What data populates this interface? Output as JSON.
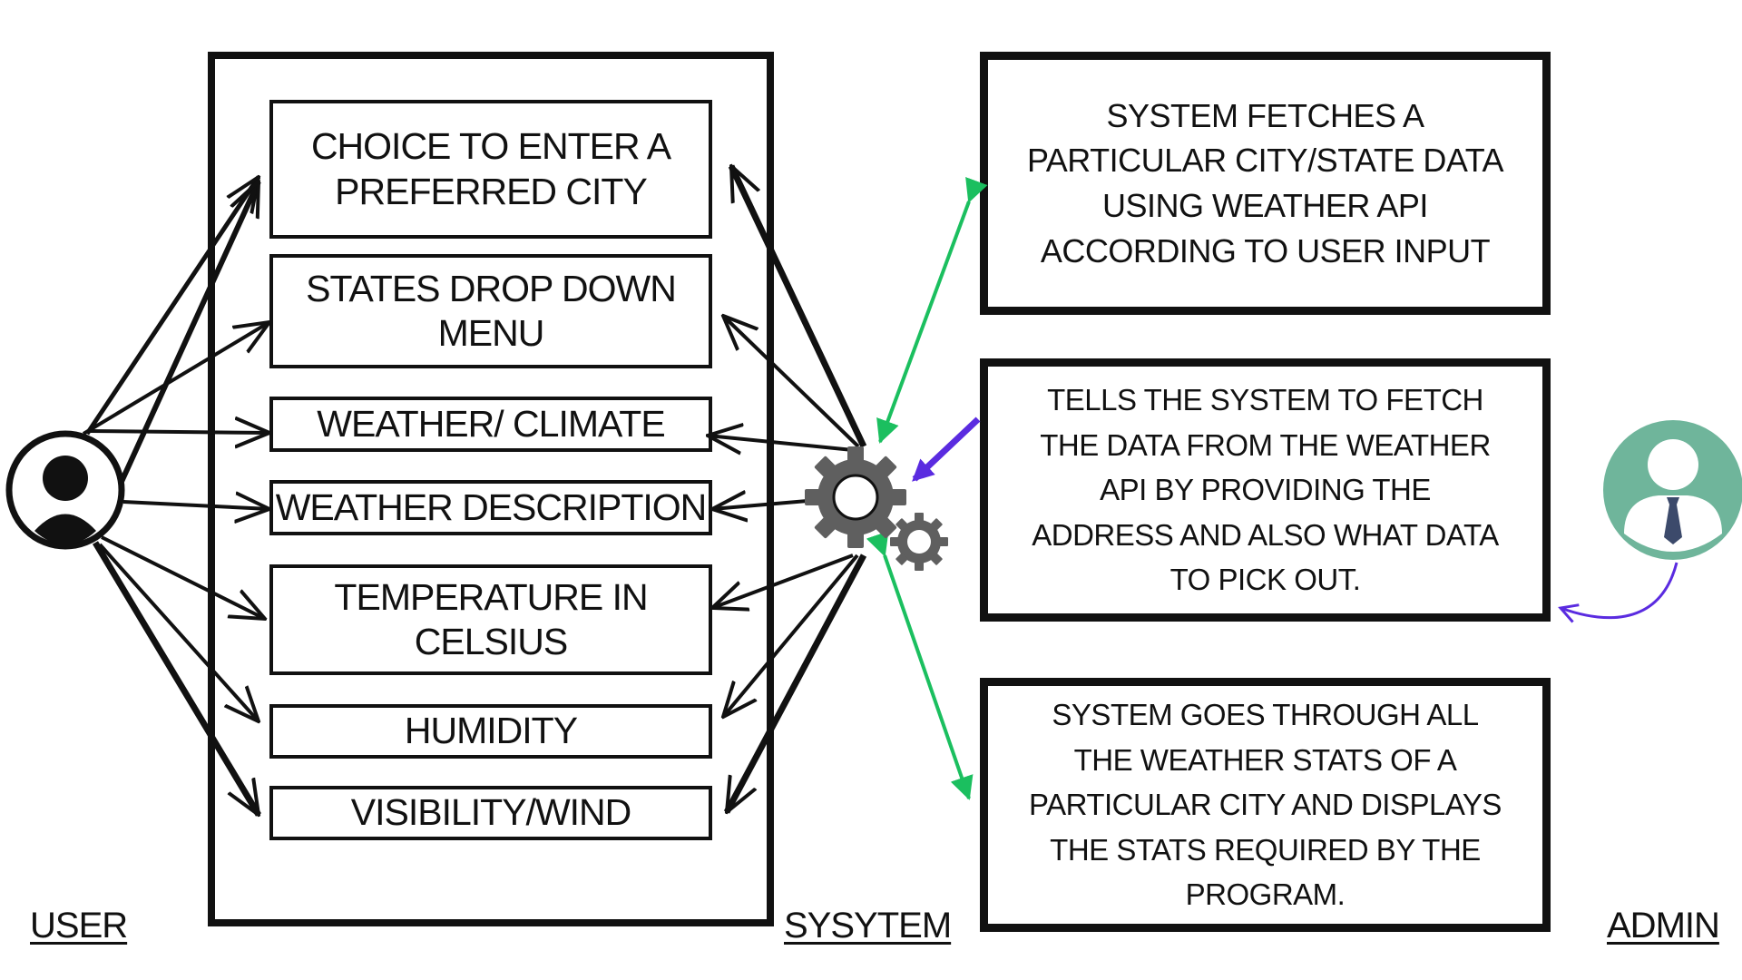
{
  "features": [
    "CHOICE TO ENTER A PREFERRED CITY",
    "STATES DROP DOWN MENU",
    "WEATHER/ CLIMATE",
    "WEATHER DESCRIPTION",
    "TEMPERATURE IN CELSIUS",
    "HUMIDITY",
    "VISIBILITY/WIND"
  ],
  "descriptions": [
    "SYSTEM FETCHES A PARTICULAR CITY/STATE DATA USING WEATHER API ACCORDING TO USER INPUT",
    "TELLS THE SYSTEM TO FETCH THE DATA FROM THE WEATHER API BY PROVIDING THE ADDRESS AND ALSO WHAT DATA TO PICK OUT.",
    "SYSTEM GOES THROUGH ALL THE WEATHER STATS OF A PARTICULAR CITY AND DISPLAYS THE STATS REQUIRED BY THE PROGRAM."
  ],
  "roles": {
    "user": "USER",
    "system": "SYSYTEM",
    "admin": "ADMIN"
  },
  "icons": {
    "user": "user-icon",
    "system": "gears-icon",
    "admin": "admin-icon"
  },
  "colors": {
    "line": "#111111",
    "green_arrow": "#1bbf5f",
    "purple_arrow": "#5a2be0",
    "admin_circle": "#6fb59b",
    "gear": "#5f5f5f"
  }
}
